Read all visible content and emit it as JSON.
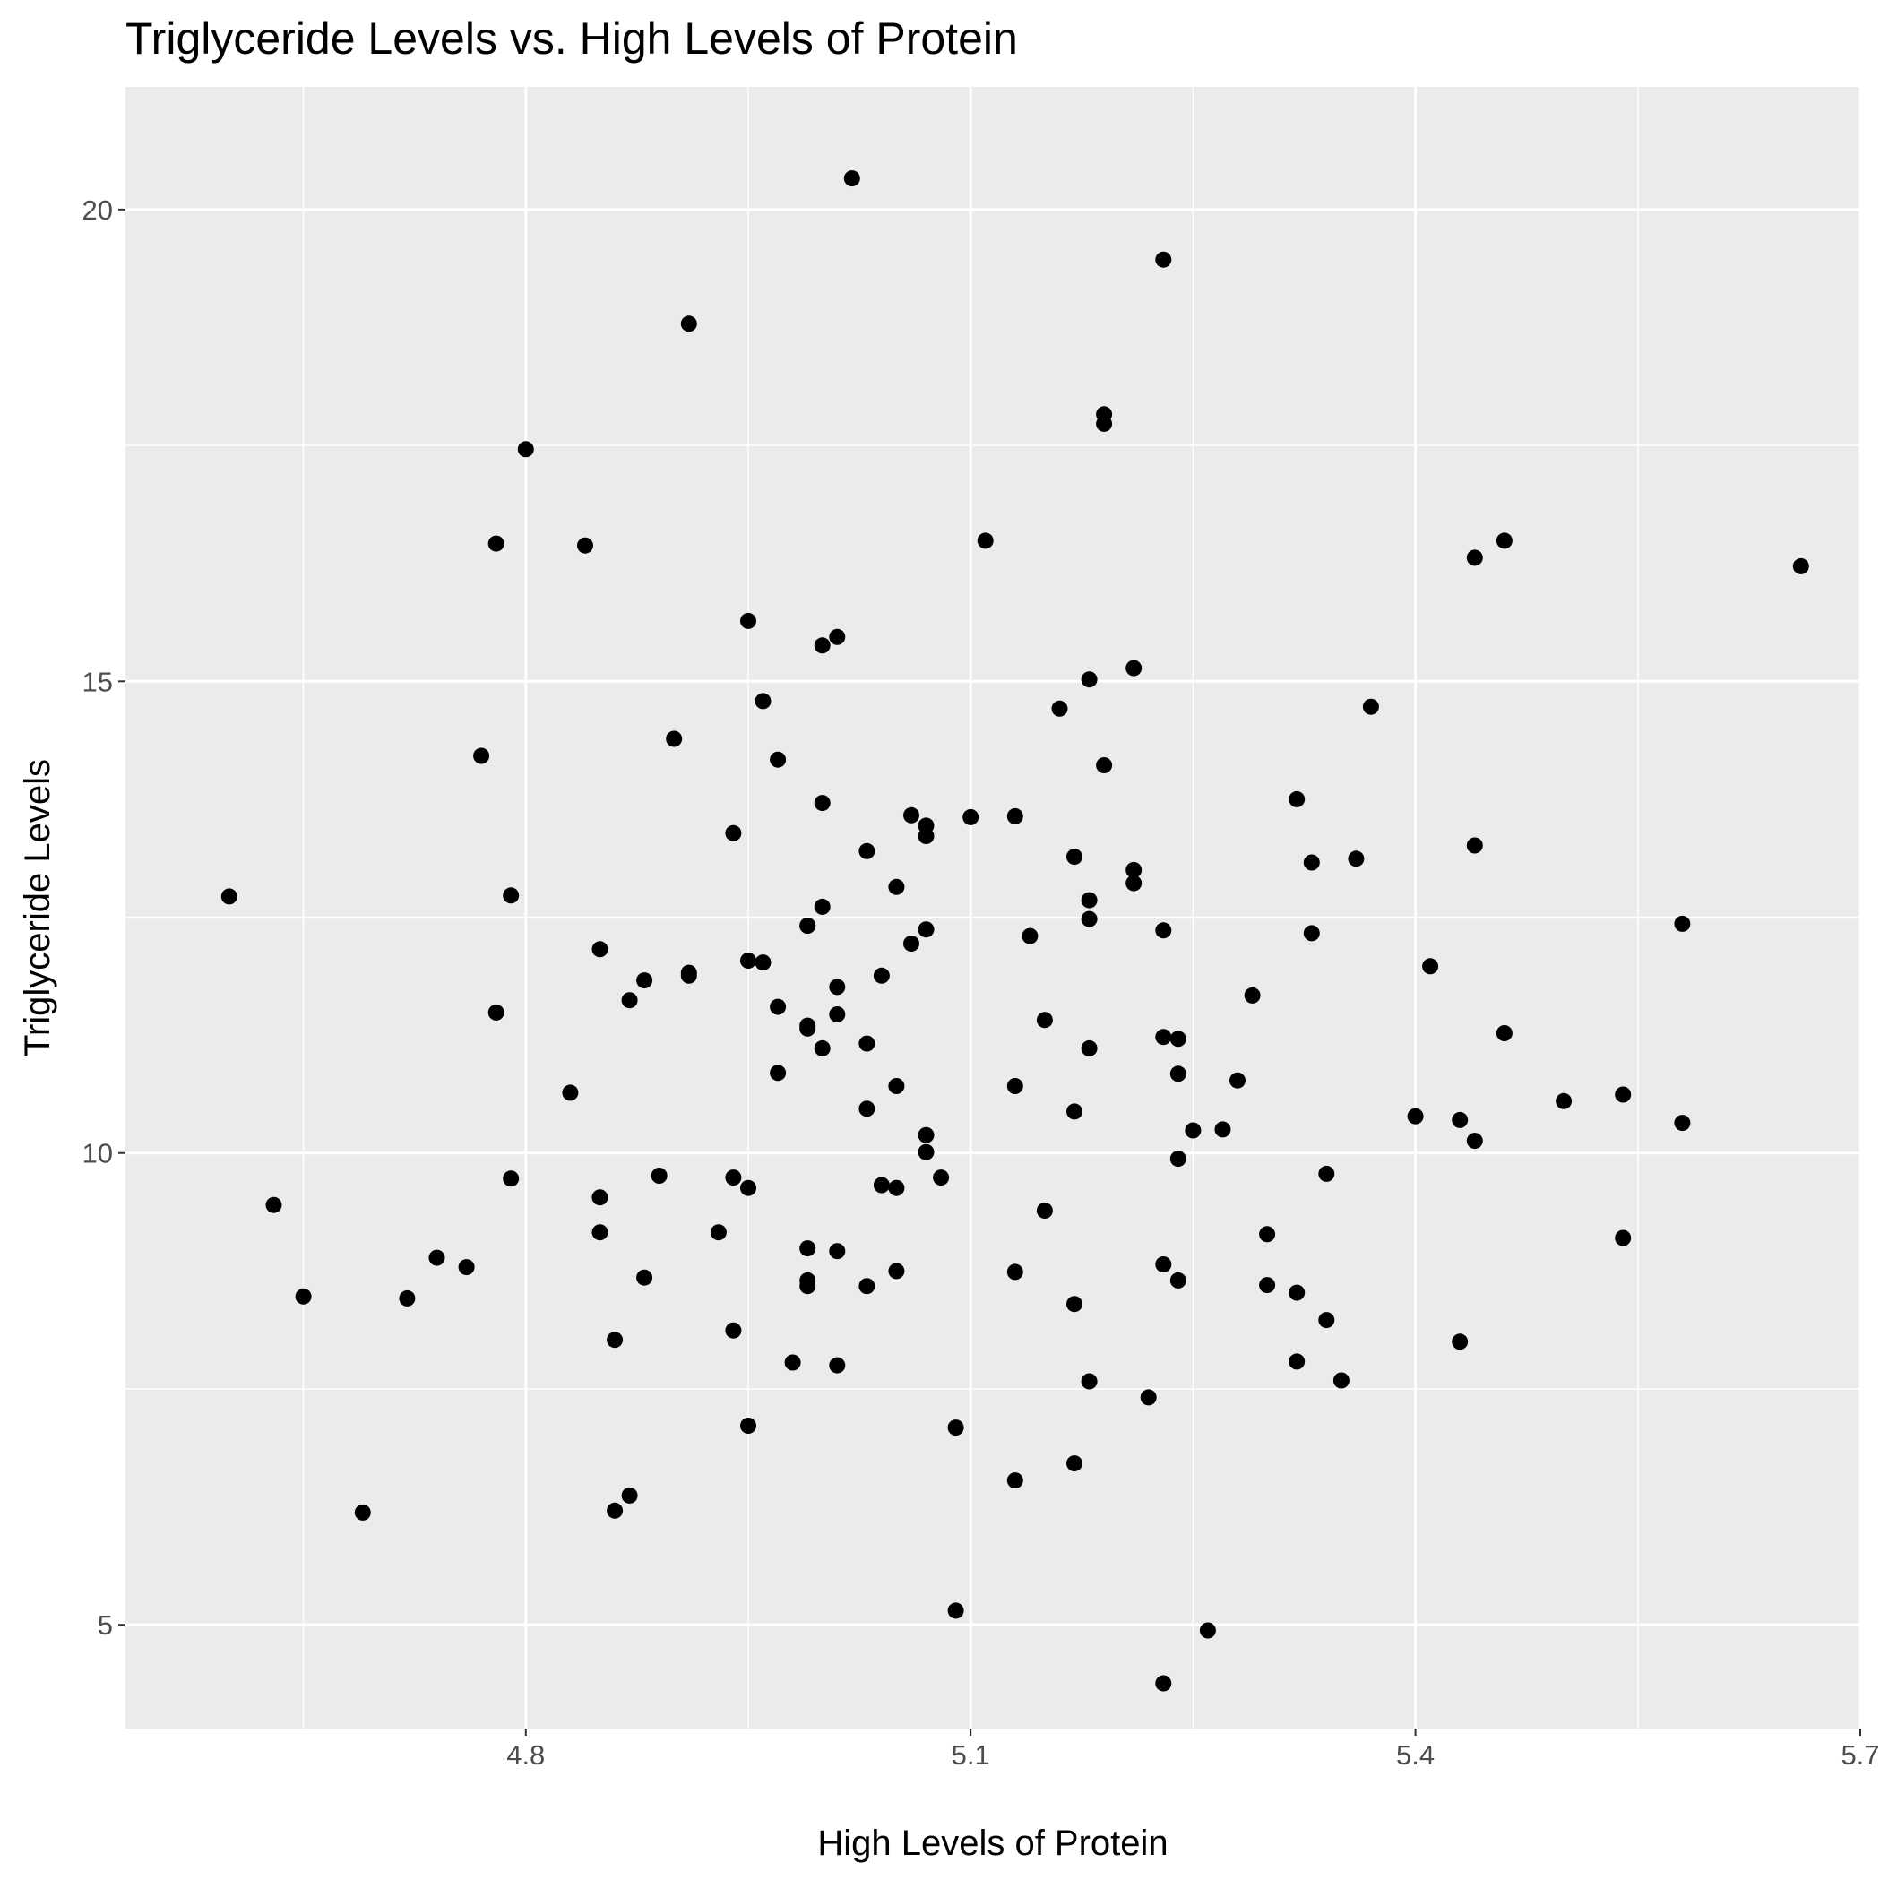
{
  "chart_data": {
    "type": "scatter",
    "title": "Triglyceride Levels vs. High Levels of Protein",
    "xlabel": "High Levels of Protein",
    "ylabel": "Triglyceride Levels",
    "xlim": [
      4.53,
      5.7
    ],
    "ylim": [
      3.9,
      21.3
    ],
    "xticks": [
      4.8,
      5.1,
      5.4,
      5.7
    ],
    "xtick_labels": [
      "4.8",
      "5.1",
      "5.4",
      "5.7"
    ],
    "yticks": [
      5,
      10,
      15,
      20
    ],
    "ytick_labels": [
      "5",
      "10",
      "15",
      "20"
    ],
    "grid": true,
    "legend": "none",
    "background": "#ebebeb",
    "grid_color": "#ffffff",
    "point_color": "#000000",
    "points": [
      [
        5.02,
        20.33
      ],
      [
        5.23,
        19.47
      ],
      [
        4.91,
        18.79
      ],
      [
        5.19,
        17.83
      ],
      [
        5.19,
        17.73
      ],
      [
        4.8,
        17.46
      ],
      [
        4.78,
        16.46
      ],
      [
        4.84,
        16.44
      ],
      [
        5.11,
        16.49
      ],
      [
        5.46,
        16.49
      ],
      [
        5.44,
        16.31
      ],
      [
        5.66,
        16.22
      ],
      [
        4.95,
        15.64
      ],
      [
        5.01,
        15.47
      ],
      [
        5.0,
        15.38
      ],
      [
        5.21,
        15.14
      ],
      [
        5.18,
        15.02
      ],
      [
        4.96,
        14.79
      ],
      [
        5.16,
        14.71
      ],
      [
        5.37,
        14.73
      ],
      [
        4.9,
        14.39
      ],
      [
        4.97,
        14.17
      ],
      [
        4.77,
        14.21
      ],
      [
        5.19,
        14.11
      ],
      [
        5.32,
        13.75
      ],
      [
        5.0,
        13.71
      ],
      [
        5.06,
        13.58
      ],
      [
        5.13,
        13.57
      ],
      [
        5.1,
        13.56
      ],
      [
        5.07,
        13.47
      ],
      [
        5.07,
        13.36
      ],
      [
        4.94,
        13.39
      ],
      [
        5.44,
        13.26
      ],
      [
        5.03,
        13.2
      ],
      [
        5.17,
        13.14
      ],
      [
        5.36,
        13.12
      ],
      [
        5.33,
        13.08
      ],
      [
        5.21,
        13.0
      ],
      [
        5.21,
        12.86
      ],
      [
        5.05,
        12.82
      ],
      [
        4.6,
        12.72
      ],
      [
        4.79,
        12.73
      ],
      [
        5.18,
        12.68
      ],
      [
        5.0,
        12.61
      ],
      [
        5.18,
        12.48
      ],
      [
        4.99,
        12.41
      ],
      [
        4.99,
        12.41
      ],
      [
        5.58,
        12.43
      ],
      [
        5.07,
        12.37
      ],
      [
        5.23,
        12.36
      ],
      [
        5.14,
        12.3
      ],
      [
        5.33,
        12.33
      ],
      [
        5.06,
        12.22
      ],
      [
        4.85,
        12.16
      ],
      [
        4.95,
        12.04
      ],
      [
        4.96,
        12.02
      ],
      [
        5.41,
        11.98
      ],
      [
        4.91,
        11.91
      ],
      [
        4.91,
        11.88
      ],
      [
        5.04,
        11.88
      ],
      [
        4.88,
        11.83
      ],
      [
        5.01,
        11.76
      ],
      [
        4.87,
        11.62
      ],
      [
        5.29,
        11.67
      ],
      [
        4.97,
        11.55
      ],
      [
        4.78,
        11.49
      ],
      [
        5.01,
        11.47
      ],
      [
        5.15,
        11.41
      ],
      [
        4.99,
        11.35
      ],
      [
        4.99,
        11.32
      ],
      [
        5.46,
        11.27
      ],
      [
        5.23,
        11.23
      ],
      [
        5.24,
        11.21
      ],
      [
        5.03,
        11.16
      ],
      [
        5.0,
        11.11
      ],
      [
        5.18,
        11.11
      ],
      [
        4.97,
        10.85
      ],
      [
        5.24,
        10.84
      ],
      [
        5.28,
        10.77
      ],
      [
        5.05,
        10.71
      ],
      [
        5.13,
        10.71
      ],
      [
        4.83,
        10.64
      ],
      [
        5.5,
        10.55
      ],
      [
        5.54,
        10.62
      ],
      [
        5.03,
        10.47
      ],
      [
        5.17,
        10.44
      ],
      [
        5.4,
        10.39
      ],
      [
        5.43,
        10.35
      ],
      [
        5.58,
        10.32
      ],
      [
        5.27,
        10.25
      ],
      [
        5.25,
        10.24
      ],
      [
        5.07,
        10.19
      ],
      [
        5.44,
        10.13
      ],
      [
        5.07,
        10.01
      ],
      [
        5.24,
        9.94
      ],
      [
        4.89,
        9.76
      ],
      [
        4.94,
        9.74
      ],
      [
        4.79,
        9.73
      ],
      [
        5.08,
        9.74
      ],
      [
        5.34,
        9.78
      ],
      [
        5.04,
        9.66
      ],
      [
        5.05,
        9.63
      ],
      [
        4.95,
        9.63
      ],
      [
        4.85,
        9.53
      ],
      [
        4.63,
        9.45
      ],
      [
        5.15,
        9.39
      ],
      [
        4.85,
        9.16
      ],
      [
        4.93,
        9.16
      ],
      [
        5.3,
        9.14
      ],
      [
        5.54,
        9.1
      ],
      [
        4.99,
        8.99
      ],
      [
        5.01,
        8.96
      ],
      [
        4.74,
        8.89
      ],
      [
        4.76,
        8.79
      ],
      [
        5.23,
        8.82
      ],
      [
        5.05,
        8.75
      ],
      [
        5.13,
        8.74
      ],
      [
        4.88,
        8.68
      ],
      [
        5.24,
        8.65
      ],
      [
        4.99,
        8.65
      ],
      [
        4.99,
        8.59
      ],
      [
        5.03,
        8.59
      ],
      [
        5.3,
        8.6
      ],
      [
        5.32,
        8.52
      ],
      [
        4.65,
        8.48
      ],
      [
        4.72,
        8.46
      ],
      [
        5.17,
        8.4
      ],
      [
        5.34,
        8.23
      ],
      [
        4.94,
        8.12
      ],
      [
        4.86,
        8.02
      ],
      [
        5.43,
        8.0
      ],
      [
        5.32,
        7.79
      ],
      [
        4.98,
        7.78
      ],
      [
        5.01,
        7.75
      ],
      [
        5.18,
        7.58
      ],
      [
        5.35,
        7.59
      ],
      [
        5.22,
        7.41
      ],
      [
        4.95,
        7.11
      ],
      [
        5.09,
        7.09
      ],
      [
        5.17,
        6.71
      ],
      [
        5.13,
        6.53
      ],
      [
        4.87,
        6.37
      ],
      [
        4.86,
        6.21
      ],
      [
        4.69,
        6.19
      ],
      [
        5.09,
        5.15
      ],
      [
        5.26,
        4.94
      ],
      [
        5.23,
        4.38
      ]
    ]
  }
}
